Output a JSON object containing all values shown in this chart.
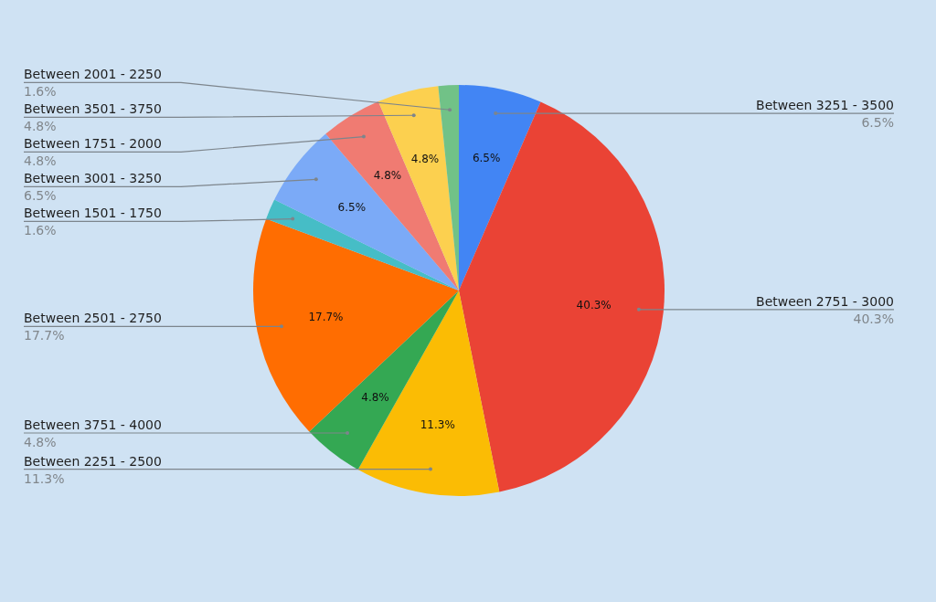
{
  "chart_data": {
    "type": "pie",
    "categories": [
      "Between 3251 - 3500",
      "Between 2751 - 3000",
      "Between 2251 - 2500",
      "Between 3751 - 4000",
      "Between 2501 - 2750",
      "Between 1501 - 1750",
      "Between 3001 - 3250",
      "Between 1751 - 2000",
      "Between 3501 - 3750",
      "Between 2001 - 2250"
    ],
    "values": [
      6.5,
      40.3,
      11.3,
      4.8,
      17.7,
      1.6,
      6.5,
      4.8,
      4.8,
      1.6
    ],
    "colors": [
      "#4285f4",
      "#ea4335",
      "#fbbc04",
      "#34a853",
      "#ff6d01",
      "#46bdc6",
      "#7baaf7",
      "#f07b72",
      "#fcd04f",
      "#71c287"
    ],
    "value_labels": [
      "6.5%",
      "40.3%",
      "11.3%",
      "4.8%",
      "17.7%",
      "1.6%",
      "6.5%",
      "4.8%",
      "4.8%",
      "1.6%"
    ]
  }
}
